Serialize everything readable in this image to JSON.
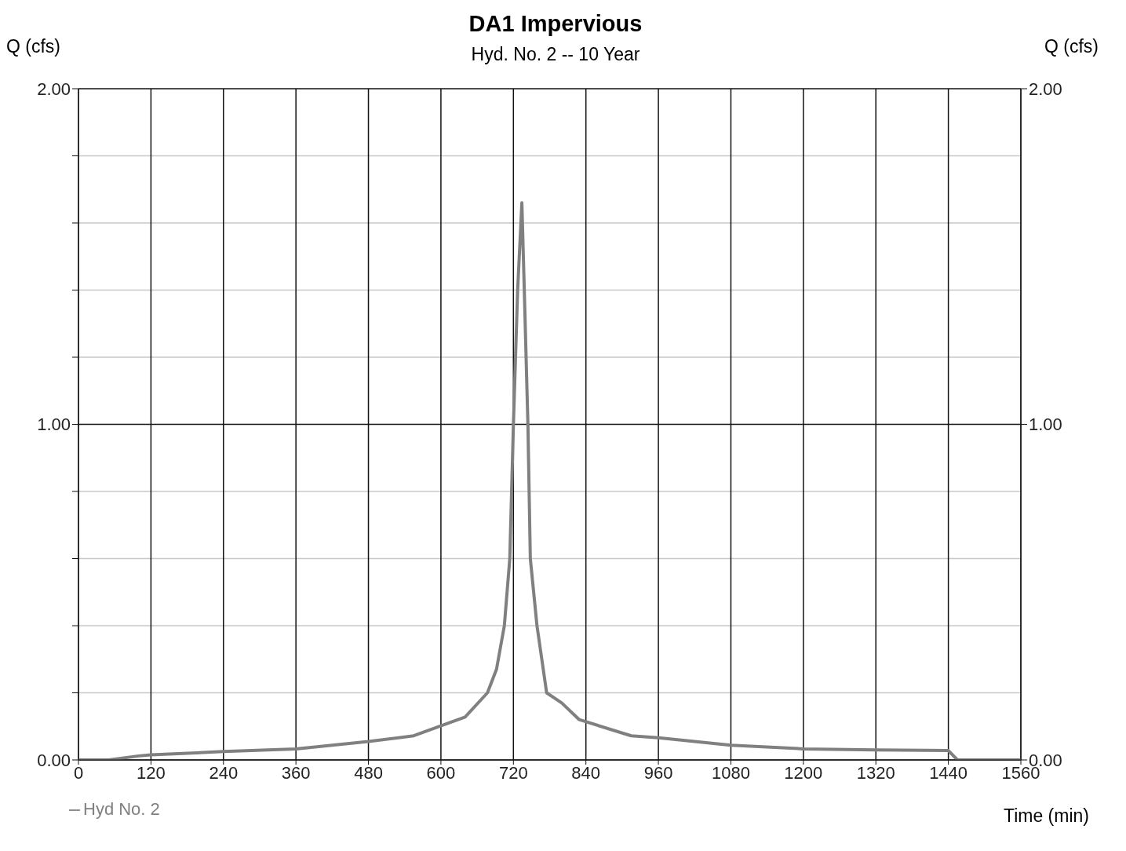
{
  "chart_data": {
    "type": "line",
    "title": "DA1 Impervious",
    "subtitle": "Hyd. No. 2 -- 10 Year",
    "xlabel": "Time (min)",
    "ylabel": "Q (cfs)",
    "y2label": "Q (cfs)",
    "xlim": [
      0,
      1560
    ],
    "xticks": [
      0,
      120,
      240,
      360,
      480,
      600,
      720,
      840,
      960,
      1080,
      1200,
      1320,
      1440,
      1560
    ],
    "ylim": [
      0,
      2
    ],
    "yticks": [
      {
        "value": 0,
        "label": "0.00"
      },
      {
        "value": 0.2,
        "label": null
      },
      {
        "value": 0.4,
        "label": null
      },
      {
        "value": 0.6,
        "label": null
      },
      {
        "value": 0.8,
        "label": null
      },
      {
        "value": 1,
        "label": "1.00"
      },
      {
        "value": 1.2,
        "label": null
      },
      {
        "value": 1.4,
        "label": null
      },
      {
        "value": 1.6,
        "label": null
      },
      {
        "value": 1.8,
        "label": null
      },
      {
        "value": 2,
        "label": "2.00"
      }
    ],
    "y2lim": [
      0,
      2
    ],
    "y2ticks": [
      {
        "value": 0,
        "label": "0.00"
      },
      {
        "value": 1,
        "label": "1.00"
      },
      {
        "value": 2,
        "label": "2.00"
      }
    ],
    "grid": true,
    "legend": "bottom left",
    "marker": "none",
    "line_style": "solid",
    "x": [
      0,
      50,
      100,
      120,
      240,
      360,
      480,
      555,
      640,
      677,
      692,
      705,
      714,
      720,
      727,
      734,
      738,
      744,
      748,
      759,
      775,
      800,
      829,
      915,
      960,
      1080,
      1200,
      1320,
      1440,
      1455,
      1560
    ],
    "series": [
      {
        "name": "Hyd No. 2",
        "color": "#808080",
        "values": [
          0,
          0,
          0.012,
          0.015,
          0.025,
          0.033,
          0.055,
          0.072,
          0.128,
          0.2,
          0.27,
          0.4,
          0.6,
          1.0,
          1.4,
          1.66,
          1.4,
          1.0,
          0.6,
          0.4,
          0.2,
          0.17,
          0.12,
          0.072,
          0.066,
          0.044,
          0.033,
          0.03,
          0.028,
          0,
          0
        ]
      }
    ]
  }
}
